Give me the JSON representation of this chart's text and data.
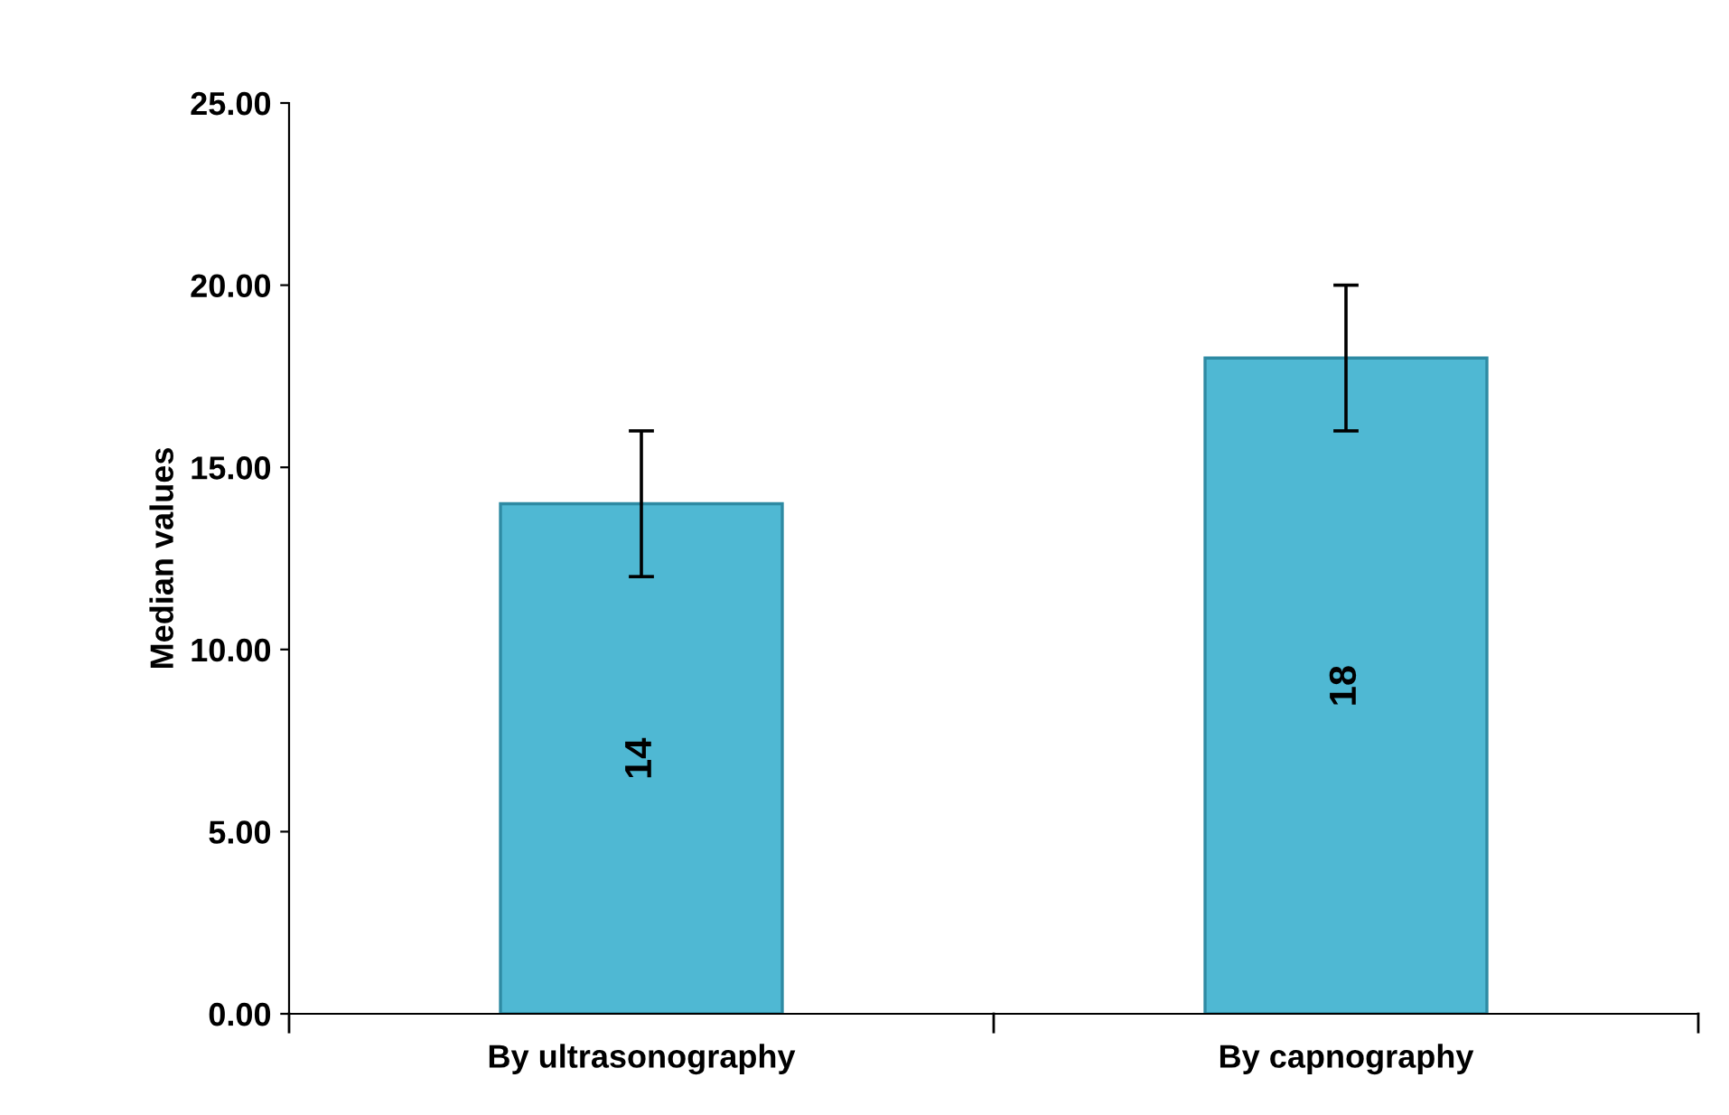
{
  "chart_data": {
    "type": "bar",
    "ylabel": "Median values",
    "categories": [
      "By ultrasonography",
      "By capnography"
    ],
    "values": [
      14,
      18
    ],
    "errors": [
      2,
      2
    ],
    "color": "#4fb8d3",
    "data_labels": true,
    "ylim": [
      0,
      25
    ],
    "yticks": [
      {
        "value": 0,
        "label": "0.00"
      },
      {
        "value": 5,
        "label": "5.00"
      },
      {
        "value": 10,
        "label": "10.00"
      },
      {
        "value": 15,
        "label": "15.00"
      },
      {
        "value": 20,
        "label": "20.00"
      },
      {
        "value": 25,
        "label": "25.00"
      }
    ],
    "grid": false,
    "legend": false
  }
}
